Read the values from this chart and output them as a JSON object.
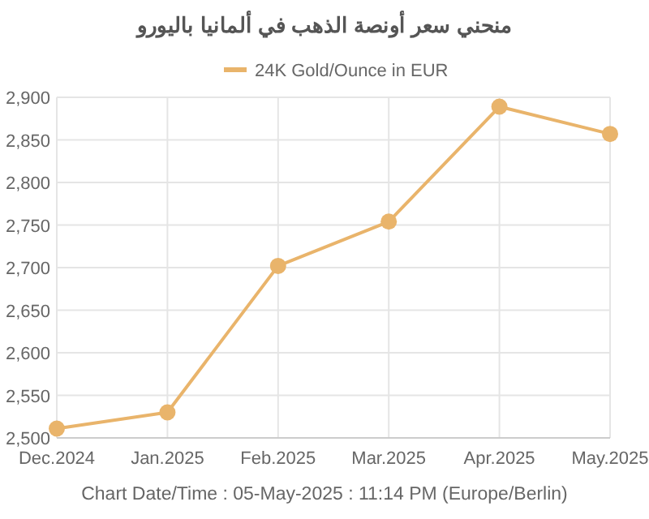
{
  "chart_data": {
    "type": "line",
    "title": "منحني سعر أونصة الذهب في ألمانيا باليورو",
    "categories": [
      "Dec.2024",
      "Jan.2025",
      "Feb.2025",
      "Mar.2025",
      "Apr.2025",
      "May.2025"
    ],
    "series": [
      {
        "name": "24K Gold/Ounce in EUR",
        "color": "#e9b46b",
        "values": [
          2511,
          2530,
          2702,
          2754,
          2889,
          2857
        ]
      }
    ],
    "ylim": [
      2500,
      2900
    ],
    "yticks": [
      {
        "value": 2500,
        "label": "2,500"
      },
      {
        "value": 2550,
        "label": "2,550"
      },
      {
        "value": 2600,
        "label": "2,600"
      },
      {
        "value": 2650,
        "label": "2,650"
      },
      {
        "value": 2700,
        "label": "2,700"
      },
      {
        "value": 2750,
        "label": "2,750"
      },
      {
        "value": 2800,
        "label": "2,800"
      },
      {
        "value": 2850,
        "label": "2,850"
      },
      {
        "value": 2900,
        "label": "2,900"
      }
    ],
    "grid": true,
    "legend": "top",
    "marker": "circle",
    "line_style": "solid",
    "annotations": [
      "Chart Date/Time : 05-May-2025 : 11:14 PM (Europe/Berlin)"
    ]
  }
}
